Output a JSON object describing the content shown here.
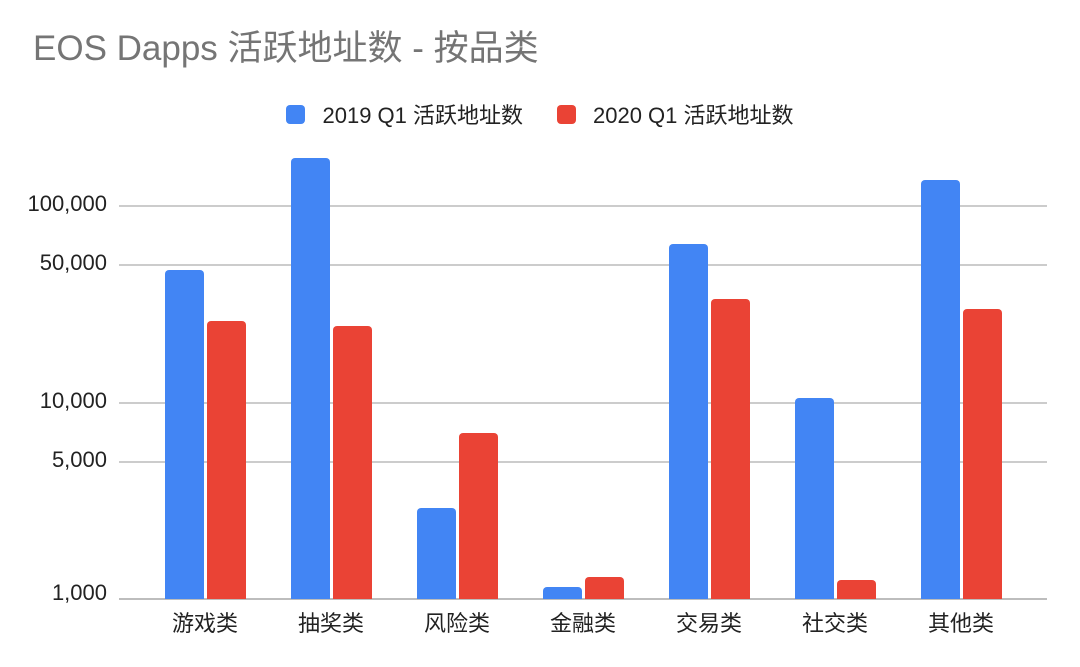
{
  "title": "EOS Dapps 活跃地址数 - 按品类",
  "colors": {
    "series_2019": "#4285F4",
    "series_2020": "#EA4335",
    "title_text": "#757575",
    "axis_text": "#222222",
    "gridline": "#cccccc",
    "baseline": "#bdbdbd",
    "background": "#ffffff"
  },
  "legend": {
    "position": "top",
    "items": [
      {
        "label": "2019 Q1 活跃地址数",
        "color": "#4285F4"
      },
      {
        "label": "2020 Q1 活跃地址数",
        "color": "#EA4335"
      }
    ]
  },
  "chart_data": {
    "type": "bar",
    "orientation": "vertical",
    "y_scale": "log",
    "grid": true,
    "legend_position": "top",
    "title": "EOS Dapps 活跃地址数 - 按品类",
    "xlabel": "",
    "ylabel": "",
    "categories": [
      "游戏类",
      "抽奖类",
      "风险类",
      "金融类",
      "交易类",
      "社交类",
      "其他类"
    ],
    "series": [
      {
        "name": "2019 Q1 活跃地址数",
        "color": "#4285F4",
        "values": [
          47000,
          175000,
          2900,
          1150,
          64000,
          10500,
          135000
        ]
      },
      {
        "name": "2020 Q1 活跃地址数",
        "color": "#EA4335",
        "values": [
          26000,
          24500,
          7000,
          1300,
          33500,
          1250,
          30000
        ]
      }
    ],
    "y_ticks": [
      {
        "value": 1000,
        "label": "1,000"
      },
      {
        "value": 5000,
        "label": "5,000"
      },
      {
        "value": 10000,
        "label": "10,000"
      },
      {
        "value": 50000,
        "label": "50,000"
      },
      {
        "value": 100000,
        "label": "100,000"
      }
    ],
    "ylim": [
      1000,
      217000
    ]
  }
}
